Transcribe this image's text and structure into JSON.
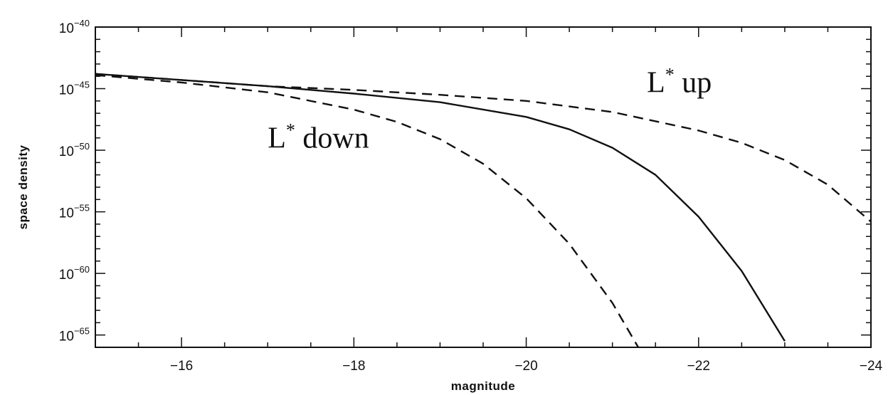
{
  "chart_data": {
    "type": "line",
    "title": "",
    "xlabel": "magnitude",
    "ylabel": "space density",
    "xlim": [
      -15,
      -24
    ],
    "ylim_log10": [
      -66,
      -40
    ],
    "y_scale": "log",
    "x_ticks": [
      {
        "value": -16,
        "label": "−16"
      },
      {
        "value": -18,
        "label": "−18"
      },
      {
        "value": -20,
        "label": "−20"
      },
      {
        "value": -22,
        "label": "−22"
      },
      {
        "value": -24,
        "label": "−24"
      }
    ],
    "y_ticks": [
      {
        "value": -40,
        "base": "10",
        "exp": "−40"
      },
      {
        "value": -45,
        "base": "10",
        "exp": "−45"
      },
      {
        "value": -50,
        "base": "10",
        "exp": "−50"
      },
      {
        "value": -55,
        "base": "10",
        "exp": "−55"
      },
      {
        "value": -60,
        "base": "10",
        "exp": "−60"
      },
      {
        "value": -65,
        "base": "10",
        "exp": "−65"
      }
    ],
    "series": [
      {
        "style": "solid",
        "x": [
          -15.0,
          -16.0,
          -17.0,
          -18.0,
          -19.0,
          -20.0,
          -20.5,
          -21.0,
          -21.5,
          -22.0,
          -22.5,
          -23.0
        ],
        "log10_y": [
          -43.8,
          -44.3,
          -44.8,
          -45.4,
          -46.1,
          -47.3,
          -48.3,
          -49.8,
          -52.0,
          -55.4,
          -59.8,
          -65.5
        ]
      },
      {
        "style": "dashed",
        "label": "L* down",
        "x": [
          -15.0,
          -16.0,
          -17.0,
          -18.0,
          -18.5,
          -19.0,
          -19.5,
          -20.0,
          -20.5,
          -21.0,
          -21.3
        ],
        "log10_y": [
          -43.9,
          -44.5,
          -45.3,
          -46.7,
          -47.7,
          -49.1,
          -51.1,
          -53.9,
          -57.6,
          -62.4,
          -66.0
        ]
      },
      {
        "style": "dashed",
        "label": "L* up",
        "x": [
          -15.0,
          -16.0,
          -17.0,
          -18.0,
          -19.0,
          -20.0,
          -21.0,
          -22.0,
          -22.5,
          -23.0,
          -23.5,
          -24.0
        ],
        "log10_y": [
          -43.8,
          -44.3,
          -44.8,
          -45.1,
          -45.5,
          -46.0,
          -46.9,
          -48.4,
          -49.4,
          -50.8,
          -52.8,
          -55.8
        ]
      }
    ],
    "annotations": [
      {
        "text": "L",
        "sup": "*",
        "rest": " up",
        "x": -21.4,
        "log10_y": -45.3
      },
      {
        "text": "L",
        "sup": "*",
        "rest": " down",
        "x": -17.0,
        "log10_y": -49.8
      }
    ],
    "grid": false,
    "legend": "none"
  }
}
